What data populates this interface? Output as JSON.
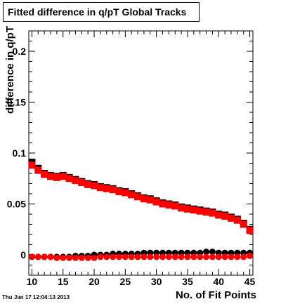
{
  "chart_data": {
    "type": "scatter",
    "title": "Fitted difference in q/pT  Global Tracks",
    "xlabel": "No. of Fit Points",
    "ylabel": "difference in q/pT",
    "xlim": [
      9.5,
      45.5
    ],
    "ylim": [
      -0.02,
      0.22
    ],
    "x_ticks": [
      10,
      15,
      20,
      25,
      30,
      35,
      40,
      45
    ],
    "y_ticks": [
      0,
      0.05,
      0.1,
      0.15,
      0.2
    ],
    "y_tick_labels": [
      "0",
      "0.05",
      "0.1",
      "0.15",
      "0.2"
    ],
    "grid": false,
    "legend": "none",
    "x": [
      10,
      11,
      12,
      13,
      14,
      15,
      16,
      17,
      18,
      19,
      20,
      21,
      22,
      23,
      24,
      25,
      26,
      27,
      28,
      29,
      30,
      31,
      32,
      33,
      34,
      35,
      36,
      37,
      38,
      39,
      40,
      41,
      42,
      43,
      44,
      45
    ],
    "series": [
      {
        "color": "#000000",
        "marker": "square",
        "values": [
          0.091,
          0.085,
          0.08,
          0.078,
          0.077,
          0.078,
          0.076,
          0.074,
          0.072,
          0.07,
          0.069,
          0.067,
          0.066,
          0.065,
          0.063,
          0.062,
          0.06,
          0.058,
          0.056,
          0.055,
          0.053,
          0.051,
          0.05,
          0.049,
          0.047,
          0.046,
          0.045,
          0.044,
          0.043,
          0.042,
          0.04,
          0.039,
          0.037,
          0.035,
          0.031,
          0.025
        ]
      },
      {
        "color": "#ff0000",
        "marker": "square",
        "values": [
          0.088,
          0.083,
          0.079,
          0.077,
          0.076,
          0.077,
          0.075,
          0.073,
          0.071,
          0.069,
          0.068,
          0.066,
          0.065,
          0.064,
          0.062,
          0.061,
          0.059,
          0.057,
          0.055,
          0.054,
          0.052,
          0.05,
          0.049,
          0.048,
          0.046,
          0.045,
          0.044,
          0.043,
          0.042,
          0.041,
          0.039,
          0.038,
          0.036,
          0.034,
          0.03,
          0.024
        ]
      },
      {
        "color": "#000000",
        "marker": "circle",
        "values": [
          -0.002,
          -0.002,
          -0.002,
          -0.002,
          -0.002,
          -0.002,
          -0.002,
          -0.001,
          -0.001,
          -0.001,
          0.0,
          0.0,
          0.0,
          0.001,
          0.001,
          0.001,
          0.001,
          0.001,
          0.002,
          0.002,
          0.002,
          0.002,
          0.002,
          0.002,
          0.002,
          0.002,
          0.002,
          0.002,
          0.003,
          0.003,
          0.002,
          0.002,
          0.002,
          0.002,
          0.002,
          0.002
        ]
      },
      {
        "color": "#ff0000",
        "marker": "circle",
        "values": [
          -0.002,
          -0.002,
          -0.002,
          -0.002,
          -0.003,
          -0.003,
          -0.003,
          -0.003,
          -0.003,
          -0.003,
          -0.003,
          -0.002,
          -0.002,
          -0.002,
          -0.002,
          -0.002,
          -0.002,
          -0.002,
          -0.002,
          -0.002,
          -0.002,
          -0.002,
          -0.002,
          -0.002,
          -0.002,
          -0.002,
          -0.002,
          -0.002,
          -0.002,
          -0.002,
          -0.002,
          -0.002,
          -0.002,
          -0.002,
          -0.002,
          -0.001
        ]
      }
    ],
    "timestamp": "Thu Jan 17 12:04:13 2013"
  }
}
